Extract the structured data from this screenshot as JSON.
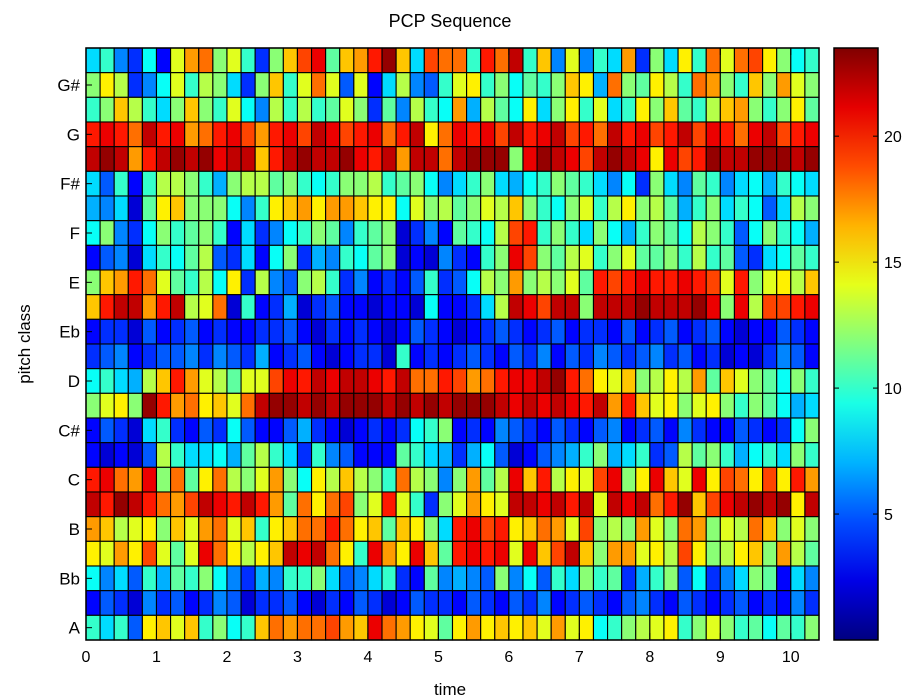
{
  "chart_data": {
    "type": "heatmap",
    "title": "PCP Sequence",
    "xlabel": "time",
    "ylabel": "pitch class",
    "x_ticks": [
      "0",
      "1",
      "2",
      "3",
      "4",
      "5",
      "6",
      "7",
      "8",
      "9",
      "10"
    ],
    "xlim": [
      0,
      10.4
    ],
    "y_ticks": [
      "A",
      "Bb",
      "B",
      "C",
      "C#",
      "D",
      "Eb",
      "E",
      "F",
      "F#",
      "G",
      "G#"
    ],
    "rows_per_pitch": 2,
    "columns": 52,
    "colorbar": {
      "ticks": [
        "5",
        "10",
        "15",
        "20"
      ],
      "range": [
        0,
        23.5
      ],
      "colormap": "jet"
    },
    "grid": false,
    "values_rows_top_to_bottom": [
      [
        8,
        10,
        6,
        4,
        9,
        3,
        14,
        17,
        18,
        12,
        14,
        10,
        4,
        12,
        16,
        19,
        21,
        11,
        16,
        17,
        20,
        23,
        16,
        8,
        19,
        18,
        18,
        10,
        20,
        18,
        22,
        10,
        16,
        6,
        14,
        6,
        10,
        8,
        17,
        4,
        12,
        8,
        15,
        10,
        18,
        14,
        18,
        19,
        15,
        12,
        9,
        10
      ],
      [
        12,
        15,
        13,
        4,
        6,
        9,
        14,
        10,
        13,
        12,
        8,
        4,
        12,
        16,
        10,
        14,
        18,
        14,
        5,
        14,
        3,
        8,
        13,
        6,
        5,
        10,
        14,
        15,
        10,
        12,
        9,
        11,
        10,
        12,
        16,
        15,
        7,
        18,
        12,
        11,
        15,
        13,
        10,
        18,
        17,
        12,
        10,
        16,
        12,
        17,
        14,
        12
      ],
      [
        10,
        12,
        16,
        13,
        10,
        8,
        12,
        16,
        12,
        10,
        14,
        9,
        6,
        13,
        10,
        13,
        10,
        11,
        14,
        12,
        4,
        11,
        6,
        13,
        10,
        9,
        17,
        7,
        13,
        11,
        9,
        15,
        8,
        12,
        15,
        10,
        14,
        8,
        10,
        15,
        12,
        16,
        11,
        10,
        13,
        16,
        17,
        12,
        10,
        12,
        15,
        11
      ],
      [
        20,
        21,
        20,
        18,
        22,
        20,
        21,
        17,
        18,
        20,
        21,
        19,
        17,
        20,
        21,
        19,
        22,
        21,
        19,
        20,
        21,
        18,
        20,
        22,
        15,
        18,
        21,
        20,
        21,
        19,
        22,
        20,
        21,
        22,
        19,
        20,
        18,
        22,
        20,
        21,
        19,
        20,
        22,
        19,
        21,
        20,
        18,
        21,
        22,
        19,
        20,
        21
      ],
      [
        22,
        23,
        22,
        17,
        20,
        22,
        23,
        22,
        23,
        21,
        22,
        22,
        16,
        20,
        22,
        23,
        22,
        22,
        23,
        21,
        20,
        22,
        17,
        22,
        22,
        18,
        22,
        23,
        23,
        23,
        12,
        21,
        23,
        22,
        21,
        19,
        22,
        23,
        22,
        21,
        15,
        21,
        19,
        20,
        23,
        22,
        22,
        23,
        23,
        23,
        22,
        23
      ],
      [
        8,
        5,
        10,
        3,
        10,
        13,
        13,
        12,
        10,
        7,
        12,
        13,
        13,
        11,
        12,
        10,
        9,
        10,
        12,
        12,
        13,
        10,
        11,
        12,
        9,
        6,
        8,
        10,
        12,
        8,
        7,
        9,
        10,
        12,
        11,
        10,
        8,
        6,
        9,
        4,
        12,
        8,
        6,
        11,
        10,
        6,
        8,
        9,
        7,
        10,
        9,
        8
      ],
      [
        7,
        6,
        8,
        2,
        11,
        15,
        16,
        12,
        12,
        12,
        9,
        6,
        10,
        15,
        16,
        17,
        15,
        17,
        17,
        16,
        15,
        15,
        9,
        14,
        12,
        13,
        11,
        12,
        14,
        13,
        16,
        12,
        10,
        9,
        12,
        14,
        10,
        13,
        15,
        12,
        13,
        11,
        7,
        10,
        12,
        8,
        10,
        9,
        5,
        8,
        13,
        12
      ],
      [
        9,
        12,
        6,
        4,
        9,
        12,
        10,
        11,
        12,
        10,
        3,
        8,
        4,
        6,
        9,
        10,
        12,
        11,
        6,
        10,
        11,
        12,
        2,
        4,
        6,
        3,
        11,
        10,
        9,
        13,
        19,
        20,
        10,
        12,
        10,
        8,
        12,
        9,
        7,
        10,
        12,
        11,
        9,
        13,
        12,
        10,
        5,
        9,
        12,
        10,
        9,
        7
      ],
      [
        3,
        5,
        6,
        2,
        8,
        10,
        9,
        11,
        13,
        5,
        4,
        8,
        3,
        9,
        12,
        4,
        7,
        6,
        10,
        9,
        11,
        12,
        2,
        3,
        2,
        6,
        4,
        3,
        10,
        12,
        21,
        19,
        12,
        11,
        13,
        14,
        10,
        12,
        14,
        11,
        11,
        12,
        10,
        13,
        10,
        11,
        5,
        4,
        8,
        9,
        11,
        10
      ],
      [
        12,
        16,
        17,
        20,
        18,
        14,
        11,
        10,
        13,
        9,
        15,
        4,
        13,
        6,
        5,
        12,
        13,
        10,
        4,
        6,
        3,
        4,
        3,
        5,
        10,
        4,
        5,
        9,
        13,
        12,
        17,
        12,
        13,
        12,
        14,
        11,
        20,
        19,
        20,
        21,
        20,
        20,
        21,
        20,
        19,
        14,
        20,
        12,
        14,
        15,
        13,
        16
      ],
      [
        16,
        20,
        22,
        22,
        17,
        20,
        22,
        13,
        14,
        18,
        2,
        10,
        3,
        4,
        7,
        2,
        4,
        5,
        3,
        3,
        2,
        3,
        3,
        2,
        9,
        3,
        3,
        4,
        8,
        13,
        22,
        21,
        19,
        22,
        22,
        12,
        22,
        22,
        22,
        23,
        22,
        22,
        22,
        23,
        21,
        12,
        21,
        13,
        19,
        19,
        20,
        21
      ],
      [
        3,
        4,
        4,
        2,
        5,
        3,
        4,
        5,
        3,
        4,
        3,
        3,
        4,
        4,
        5,
        3,
        2,
        4,
        3,
        4,
        3,
        2,
        3,
        5,
        4,
        3,
        2,
        3,
        4,
        5,
        4,
        3,
        4,
        5,
        3,
        4,
        4,
        3,
        5,
        3,
        4,
        5,
        3,
        4,
        5,
        3,
        2,
        3,
        3,
        5,
        4,
        3
      ],
      [
        4,
        5,
        6,
        3,
        4,
        5,
        5,
        6,
        4,
        6,
        5,
        4,
        7,
        3,
        4,
        5,
        3,
        2,
        3,
        4,
        4,
        2,
        10,
        3,
        4,
        3,
        4,
        5,
        4,
        3,
        5,
        4,
        6,
        3,
        5,
        4,
        6,
        5,
        4,
        5,
        6,
        4,
        5,
        3,
        4,
        2,
        3,
        2,
        4,
        6,
        5,
        3
      ],
      [
        9,
        10,
        8,
        7,
        13,
        16,
        20,
        17,
        14,
        13,
        11,
        14,
        14,
        19,
        21,
        20,
        22,
        21,
        22,
        22,
        21,
        20,
        22,
        18,
        18,
        20,
        19,
        17,
        18,
        20,
        21,
        21,
        22,
        23,
        20,
        18,
        15,
        14,
        16,
        12,
        13,
        15,
        13,
        17,
        11,
        16,
        14,
        12,
        11,
        9,
        12,
        10
      ],
      [
        12,
        14,
        15,
        12,
        23,
        20,
        17,
        18,
        15,
        16,
        14,
        18,
        22,
        23,
        23,
        22,
        23,
        22,
        23,
        23,
        23,
        22,
        23,
        22,
        23,
        22,
        23,
        23,
        23,
        22,
        21,
        22,
        21,
        22,
        21,
        20,
        22,
        17,
        20,
        16,
        14,
        15,
        12,
        14,
        15,
        12,
        10,
        12,
        11,
        9,
        7,
        8
      ],
      [
        3,
        5,
        4,
        2,
        8,
        10,
        4,
        3,
        5,
        4,
        9,
        5,
        3,
        3,
        5,
        7,
        4,
        3,
        2,
        3,
        4,
        3,
        4,
        9,
        10,
        12,
        3,
        4,
        3,
        6,
        5,
        4,
        3,
        5,
        4,
        3,
        5,
        6,
        3,
        4,
        5,
        3,
        6,
        4,
        3,
        3,
        5,
        4,
        3,
        4,
        9,
        12
      ],
      [
        3,
        2,
        3,
        2,
        5,
        13,
        10,
        8,
        8,
        9,
        7,
        11,
        13,
        10,
        8,
        4,
        10,
        6,
        5,
        3,
        3,
        3,
        11,
        10,
        8,
        7,
        4,
        7,
        9,
        5,
        2,
        3,
        5,
        6,
        7,
        10,
        12,
        7,
        8,
        10,
        4,
        5,
        13,
        11,
        12,
        10,
        7,
        9,
        10,
        8,
        12,
        10
      ],
      [
        20,
        21,
        18,
        17,
        21,
        12,
        18,
        11,
        15,
        18,
        13,
        12,
        14,
        17,
        12,
        9,
        15,
        13,
        16,
        13,
        12,
        10,
        18,
        13,
        12,
        6,
        12,
        17,
        11,
        13,
        21,
        16,
        20,
        13,
        15,
        14,
        19,
        21,
        12,
        15,
        21,
        16,
        14,
        21,
        15,
        19,
        18,
        15,
        19,
        15,
        20,
        17
      ],
      [
        22,
        20,
        23,
        22,
        20,
        18,
        17,
        19,
        22,
        21,
        20,
        22,
        20,
        17,
        11,
        18,
        15,
        18,
        19,
        12,
        14,
        20,
        14,
        10,
        4,
        12,
        14,
        17,
        15,
        14,
        22,
        22,
        21,
        22,
        20,
        22,
        14,
        22,
        21,
        22,
        18,
        20,
        23,
        16,
        19,
        21,
        22,
        23,
        22,
        23,
        15,
        22
      ],
      [
        17,
        16,
        13,
        14,
        15,
        12,
        16,
        14,
        17,
        18,
        14,
        16,
        10,
        15,
        16,
        18,
        18,
        20,
        18,
        15,
        16,
        11,
        16,
        15,
        12,
        8,
        20,
        21,
        19,
        20,
        15,
        16,
        18,
        17,
        14,
        19,
        12,
        13,
        12,
        17,
        14,
        12,
        18,
        17,
        12,
        14,
        13,
        18,
        16,
        12,
        14,
        12
      ],
      [
        15,
        14,
        17,
        15,
        19,
        14,
        11,
        14,
        21,
        18,
        15,
        13,
        15,
        16,
        22,
        21,
        22,
        18,
        15,
        10,
        21,
        17,
        15,
        21,
        16,
        11,
        20,
        21,
        20,
        21,
        14,
        21,
        16,
        19,
        22,
        16,
        12,
        17,
        17,
        14,
        15,
        13,
        19,
        15,
        12,
        13,
        15,
        16,
        12,
        17,
        13,
        11
      ],
      [
        9,
        6,
        8,
        5,
        10,
        7,
        11,
        10,
        12,
        9,
        6,
        4,
        7,
        6,
        10,
        10,
        12,
        8,
        5,
        6,
        8,
        10,
        4,
        3,
        11,
        6,
        7,
        6,
        5,
        12,
        6,
        9,
        5,
        10,
        8,
        12,
        10,
        11,
        4,
        7,
        10,
        12,
        5,
        9,
        4,
        6,
        8,
        12,
        11,
        3,
        8,
        6
      ],
      [
        3,
        5,
        4,
        2,
        6,
        4,
        5,
        3,
        4,
        6,
        5,
        2,
        4,
        4,
        5,
        3,
        2,
        4,
        3,
        5,
        4,
        2,
        3,
        5,
        4,
        4,
        3,
        5,
        4,
        3,
        5,
        4,
        6,
        3,
        4,
        5,
        4,
        3,
        5,
        6,
        4,
        3,
        5,
        4,
        3,
        4,
        5,
        3,
        4,
        3,
        6,
        4
      ],
      [
        10,
        8,
        10,
        5,
        15,
        16,
        14,
        16,
        10,
        12,
        9,
        10,
        16,
        18,
        17,
        18,
        18,
        19,
        17,
        16,
        21,
        18,
        17,
        15,
        14,
        11,
        15,
        17,
        15,
        16,
        15,
        16,
        14,
        17,
        14,
        15,
        9,
        10,
        12,
        13,
        14,
        15,
        10,
        12,
        14,
        12,
        10,
        11,
        9,
        11,
        10,
        12
      ]
    ]
  }
}
